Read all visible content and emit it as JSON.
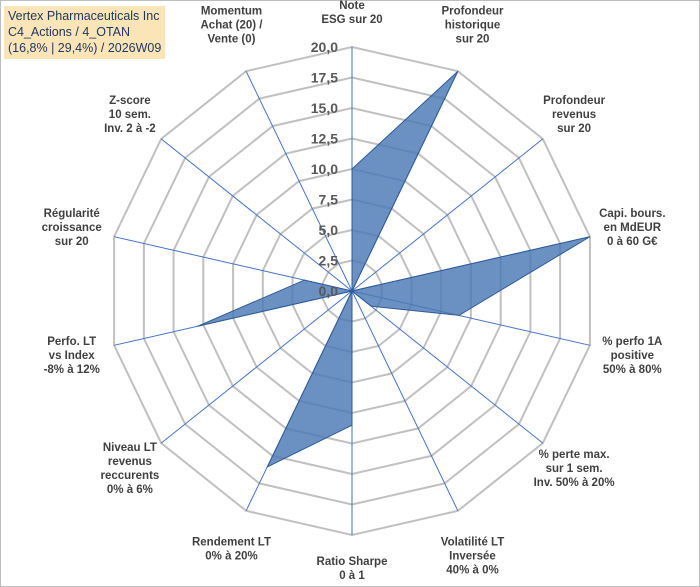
{
  "title_box": {
    "line1": "Vertex Pharmaceuticals Inc",
    "line2": "C4_Actions / 4_OTAN",
    "line3": "(16,8% | 29,4%) / 2026W09"
  },
  "colors": {
    "fill": "#4a77b4",
    "stroke": "#2f5a96",
    "grid": "#c0c0c0",
    "axis": "#4472c4",
    "title_bg": "#fbe5b6"
  },
  "chart_data": {
    "type": "radar",
    "rmin": 0,
    "rmax": 20,
    "ticks": [
      "0,0",
      "2,5",
      "5,0",
      "7,5",
      "10,0",
      "12,5",
      "15,0",
      "17,5",
      "20,0"
    ],
    "tick_values": [
      0,
      2.5,
      5,
      7.5,
      10,
      12.5,
      15,
      17.5,
      20
    ],
    "axes": [
      {
        "lines": [
          "Note",
          "ESG sur 20"
        ],
        "value": 10
      },
      {
        "lines": [
          "Profondeur",
          "historique",
          "sur 20"
        ],
        "value": 20
      },
      {
        "lines": [
          "Profondeur",
          "revenus",
          "sur 20"
        ],
        "value": 0
      },
      {
        "lines": [
          "Capi. bours.",
          "en MdEUR",
          "0 à 60 G€"
        ],
        "value": 20
      },
      {
        "lines": [
          "% perfo 1A",
          "positive",
          "50% à 80%"
        ],
        "value": 9
      },
      {
        "lines": [
          "% perte max.",
          "sur 1 sem.",
          "Inv. 50% à 20%"
        ],
        "value": 2
      },
      {
        "lines": [
          "Volatilité LT",
          "Inversée",
          "40% à 0%"
        ],
        "value": 0
      },
      {
        "lines": [
          "Ratio Sharpe",
          "0 à 1"
        ],
        "value": 11
      },
      {
        "lines": [
          "Rendement LT",
          "0% à 20%"
        ],
        "value": 16
      },
      {
        "lines": [
          "Niveau LT",
          "revenus",
          "reccurents",
          "0% à 6%"
        ],
        "value": 0
      },
      {
        "lines": [
          "Perfo. LT",
          "vs Index",
          "-8% à 12%"
        ],
        "value": 13
      },
      {
        "lines": [
          "Régularité",
          "croissance",
          "sur 20"
        ],
        "value": 4
      },
      {
        "lines": [
          "Z-score",
          "10 sem.",
          "Inv. 2 à -2"
        ],
        "value": 0
      },
      {
        "lines": [
          "Momentum",
          "Achat (20) /",
          "Vente (0)"
        ],
        "value": 0
      }
    ]
  }
}
